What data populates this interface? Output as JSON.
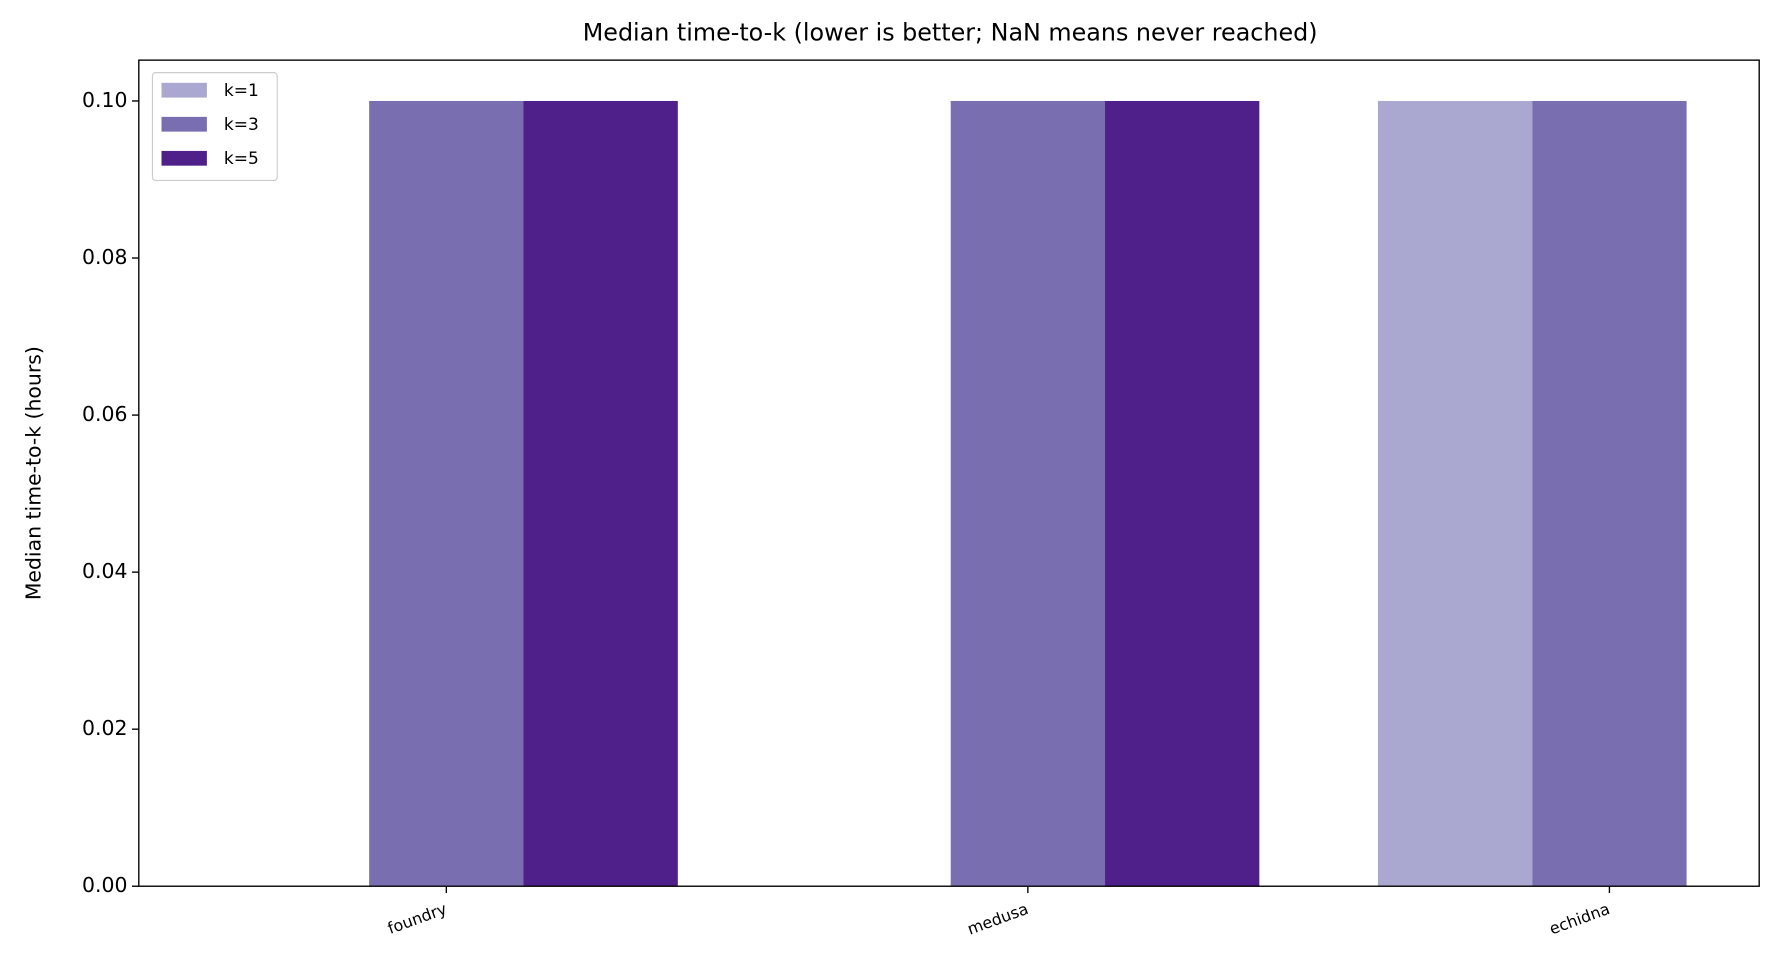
{
  "chart_data": {
    "type": "bar",
    "title": "Median time-to-k (lower is better; NaN means never reached)",
    "y_label": "Median time-to-k (hours)",
    "categories": [
      "foundry",
      "medusa",
      "echidna"
    ],
    "series": [
      {
        "name": "k=1",
        "color": "#aaa8d0",
        "values": [
          null,
          null,
          0.1
        ]
      },
      {
        "name": "k=3",
        "color": "#786eb0",
        "values": [
          0.1,
          0.1,
          0.1
        ]
      },
      {
        "name": "k=5",
        "color": "#4f208a",
        "values": [
          0.1,
          0.1,
          null
        ]
      }
    ],
    "ylim": [
      0,
      0.1052
    ],
    "yticks": [
      {
        "value": 0,
        "label": "0.00"
      },
      {
        "value": 0.02,
        "label": "0.02"
      },
      {
        "value": 0.04,
        "label": "0.04"
      },
      {
        "value": 0.06,
        "label": "0.06"
      },
      {
        "value": 0.08,
        "label": "0.08"
      },
      {
        "value": 0.1,
        "label": "0.10"
      }
    ],
    "grid": false,
    "legend": "upper-left"
  }
}
